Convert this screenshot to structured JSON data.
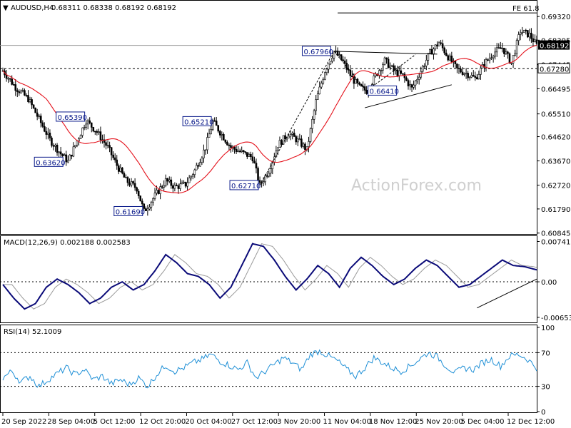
{
  "header": {
    "symbol": "AUDUSD,H4",
    "ohlc": "0.68311 0.68338 0.68192 0.68192"
  },
  "watermark": "ActionForex.com",
  "colors": {
    "candle": "#000000",
    "ma": "#e4101a",
    "macd": "#0a0a78",
    "signal": "#9a9a9a",
    "rsi": "#1e8fd6",
    "label_border": "#0a1a8a",
    "level_line": "#000000"
  },
  "chart_data": [
    {
      "type": "candlestick",
      "title": "AUDUSD,H4",
      "ylim": [
        0.6081,
        0.698
      ],
      "y_ticks": [
        "0.69320",
        "0.68395",
        "0.67445",
        "0.66495",
        "0.65510",
        "0.64620",
        "0.63670",
        "0.62720",
        "0.61790",
        "0.60845"
      ],
      "x_ticks": [
        "20 Sep 2022",
        "28 Sep 04:00",
        "5 Oct 12:00",
        "12 Oct 20:00",
        "20 Oct 04:00",
        "27 Oct 12:00",
        "3 Nov 20:00",
        "11 Nov 04:00",
        "18 Nov 12:00",
        "25 Nov 20:00",
        "5 Dec 04:00",
        "12 Dec 12:00"
      ],
      "current_price": "0.68192",
      "level_price": "0.67280",
      "fib_label": "FE 61.8",
      "fib_value": 0.6946,
      "moving_average": "red",
      "price_path": [
        [
          0,
          0.672
        ],
        [
          7,
          0.6655
        ],
        [
          14,
          0.661
        ],
        [
          20,
          0.653
        ],
        [
          26,
          0.645
        ],
        [
          32,
          0.6395
        ],
        [
          36,
          0.6365
        ],
        [
          41,
          0.6445
        ],
        [
          46,
          0.6525
        ],
        [
          52,
          0.648
        ],
        [
          58,
          0.642
        ],
        [
          63,
          0.635
        ],
        [
          68,
          0.629
        ],
        [
          74,
          0.626
        ],
        [
          78,
          0.6169
        ],
        [
          84,
          0.623
        ],
        [
          90,
          0.629
        ],
        [
          95,
          0.6265
        ],
        [
          101,
          0.6275
        ],
        [
          106,
          0.633
        ],
        [
          112,
          0.642
        ],
        [
          116,
          0.6521
        ],
        [
          121,
          0.647
        ],
        [
          126,
          0.642
        ],
        [
          132,
          0.64
        ],
        [
          138,
          0.638
        ],
        [
          142,
          0.6271
        ],
        [
          147,
          0.633
        ],
        [
          152,
          0.643
        ],
        [
          158,
          0.6475
        ],
        [
          164,
          0.644
        ],
        [
          168,
          0.641
        ],
        [
          173,
          0.66
        ],
        [
          178,
          0.672
        ],
        [
          183,
          0.6796
        ],
        [
          188,
          0.6755
        ],
        [
          193,
          0.669
        ],
        [
          197,
          0.6655
        ],
        [
          201,
          0.6641
        ],
        [
          206,
          0.67
        ],
        [
          211,
          0.676
        ],
        [
          216,
          0.672
        ],
        [
          221,
          0.67
        ],
        [
          226,
          0.665
        ],
        [
          231,
          0.672
        ],
        [
          236,
          0.679
        ],
        [
          241,
          0.683
        ],
        [
          246,
          0.6775
        ],
        [
          251,
          0.6725
        ],
        [
          256,
          0.671
        ],
        [
          261,
          0.669
        ],
        [
          266,
          0.6745
        ],
        [
          271,
          0.679
        ],
        [
          276,
          0.681
        ],
        [
          281,
          0.675
        ],
        [
          286,
          0.6875
        ],
        [
          291,
          0.686
        ],
        [
          295,
          0.6819
        ]
      ],
      "annotations": [
        {
          "text": "0.67960",
          "x": 182,
          "y": 0.6796,
          "side": "left"
        },
        {
          "text": "0.65390",
          "x": 46,
          "y": 0.6539,
          "side": "left"
        },
        {
          "text": "0.65210",
          "x": 116,
          "y": 0.6521,
          "side": "left"
        },
        {
          "text": "0.63620",
          "x": 34,
          "y": 0.6362,
          "side": "left"
        },
        {
          "text": "0.62710",
          "x": 142,
          "y": 0.6271,
          "side": "left"
        },
        {
          "text": "0.61690",
          "x": 78,
          "y": 0.6169,
          "side": "left"
        },
        {
          "text": "0.66410",
          "x": 201,
          "y": 0.6641,
          "side": "right"
        }
      ]
    },
    {
      "type": "line",
      "title": "MACD(12,26,9) 0.002188 0.002583",
      "ylim": [
        -0.0072,
        0.008
      ],
      "y_ticks": [
        "0.007411",
        "0.00",
        "-0.006532"
      ],
      "y_tick_values": [
        0.007411,
        0.0,
        -0.006532
      ],
      "macd_path": [
        [
          0,
          -0.0005
        ],
        [
          6,
          -0.003
        ],
        [
          12,
          -0.005
        ],
        [
          18,
          -0.004
        ],
        [
          24,
          -0.001
        ],
        [
          30,
          0.0005
        ],
        [
          36,
          -0.0005
        ],
        [
          42,
          -0.002
        ],
        [
          48,
          -0.004
        ],
        [
          54,
          -0.003
        ],
        [
          60,
          -0.001
        ],
        [
          66,
          0.0
        ],
        [
          72,
          -0.0015
        ],
        [
          78,
          -0.0005
        ],
        [
          84,
          0.002
        ],
        [
          90,
          0.005
        ],
        [
          96,
          0.0035
        ],
        [
          102,
          0.0015
        ],
        [
          108,
          0.001
        ],
        [
          114,
          -0.0005
        ],
        [
          120,
          -0.003
        ],
        [
          126,
          -0.001
        ],
        [
          132,
          0.003
        ],
        [
          138,
          0.007
        ],
        [
          144,
          0.0065
        ],
        [
          150,
          0.004
        ],
        [
          156,
          0.001
        ],
        [
          162,
          -0.0015
        ],
        [
          168,
          0.0005
        ],
        [
          174,
          0.003
        ],
        [
          180,
          0.0015
        ],
        [
          186,
          -0.001
        ],
        [
          192,
          0.0025
        ],
        [
          198,
          0.0045
        ],
        [
          204,
          0.003
        ],
        [
          210,
          0.001
        ],
        [
          216,
          -0.0005
        ],
        [
          222,
          0.0005
        ],
        [
          228,
          0.0025
        ],
        [
          234,
          0.004
        ],
        [
          240,
          0.003
        ],
        [
          246,
          0.001
        ],
        [
          252,
          -0.001
        ],
        [
          258,
          -0.0005
        ],
        [
          264,
          0.001
        ],
        [
          270,
          0.0025
        ],
        [
          276,
          0.004
        ],
        [
          282,
          0.003
        ],
        [
          288,
          0.0028
        ],
        [
          295,
          0.0022
        ]
      ]
    },
    {
      "type": "line",
      "title": "RSI(14) 52.1009",
      "ylim": [
        0,
        100
      ],
      "y_ticks": [
        "100",
        "70",
        "30",
        "0"
      ],
      "y_tick_values": [
        100,
        70,
        30,
        0
      ],
      "rsi_path": [
        [
          0,
          40
        ],
        [
          5,
          48
        ],
        [
          10,
          35
        ],
        [
          15,
          42
        ],
        [
          20,
          30
        ],
        [
          25,
          38
        ],
        [
          30,
          45
        ],
        [
          35,
          52
        ],
        [
          40,
          44
        ],
        [
          45,
          50
        ],
        [
          50,
          38
        ],
        [
          55,
          42
        ],
        [
          60,
          33
        ],
        [
          65,
          38
        ],
        [
          70,
          32
        ],
        [
          75,
          40
        ],
        [
          80,
          30
        ],
        [
          85,
          44
        ],
        [
          90,
          55
        ],
        [
          95,
          48
        ],
        [
          100,
          52
        ],
        [
          105,
          58
        ],
        [
          110,
          62
        ],
        [
          115,
          68
        ],
        [
          120,
          60
        ],
        [
          125,
          55
        ],
        [
          130,
          50
        ],
        [
          135,
          58
        ],
        [
          140,
          40
        ],
        [
          145,
          48
        ],
        [
          150,
          56
        ],
        [
          155,
          64
        ],
        [
          160,
          58
        ],
        [
          165,
          50
        ],
        [
          170,
          68
        ],
        [
          175,
          72
        ],
        [
          180,
          66
        ],
        [
          185,
          60
        ],
        [
          190,
          50
        ],
        [
          195,
          42
        ],
        [
          200,
          52
        ],
        [
          205,
          64
        ],
        [
          210,
          58
        ],
        [
          215,
          52
        ],
        [
          220,
          48
        ],
        [
          225,
          54
        ],
        [
          230,
          62
        ],
        [
          235,
          70
        ],
        [
          240,
          65
        ],
        [
          245,
          54
        ],
        [
          250,
          46
        ],
        [
          255,
          52
        ],
        [
          260,
          50
        ],
        [
          265,
          58
        ],
        [
          270,
          62
        ],
        [
          275,
          54
        ],
        [
          280,
          66
        ],
        [
          285,
          68
        ],
        [
          290,
          62
        ],
        [
          295,
          52
        ]
      ]
    }
  ]
}
